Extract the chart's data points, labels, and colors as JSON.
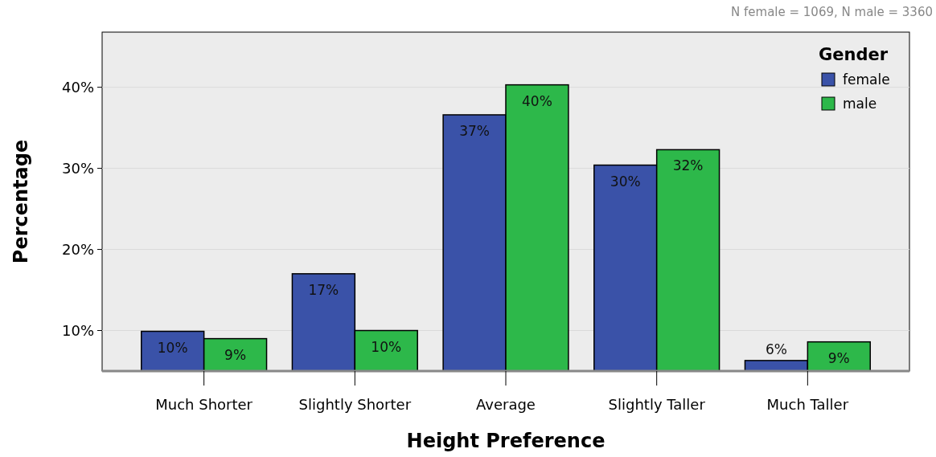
{
  "chart_data": {
    "type": "bar",
    "xlabel": "Height Preference",
    "ylabel": "Percentage",
    "legend_title": "Gender",
    "annotations": [
      "N female = 1069, N male = 3360"
    ],
    "categories": [
      "Much Shorter",
      "Slightly Shorter",
      "Average",
      "Slightly Taller",
      "Much Taller"
    ],
    "series": [
      {
        "name": "female",
        "color": "#3a52a8",
        "values": [
          9.9,
          17.0,
          36.6,
          30.4,
          6.3
        ],
        "value_labels": [
          "10%",
          "17%",
          "37%",
          "30%",
          "6%"
        ]
      },
      {
        "name": "male",
        "color": "#2db84a",
        "values": [
          9.0,
          10.0,
          40.3,
          32.3,
          8.6
        ],
        "value_labels": [
          "9%",
          "10%",
          "40%",
          "32%",
          "9%"
        ]
      }
    ],
    "ylim": [
      5,
      46.8
    ],
    "yticks": [
      {
        "value": 10,
        "label": "10%"
      },
      {
        "value": 20,
        "label": "20%"
      },
      {
        "value": 30,
        "label": "30%"
      },
      {
        "value": 40,
        "label": "40%"
      }
    ],
    "grid": "y",
    "legend": "top right"
  }
}
